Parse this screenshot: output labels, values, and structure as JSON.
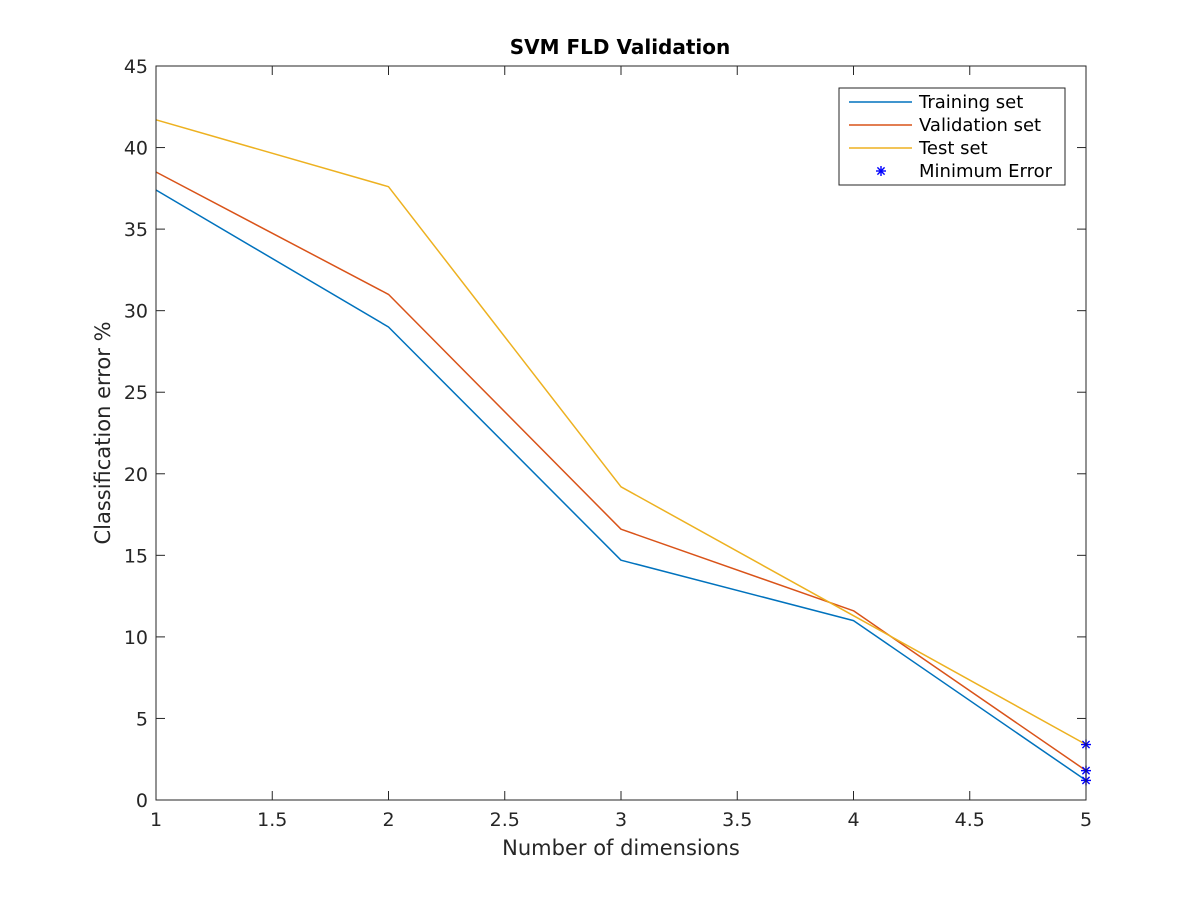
{
  "chart_data": {
    "type": "line",
    "title": "SVM FLD Validation",
    "xlabel": "Number of dimensions",
    "ylabel": "Classification error %",
    "xlim": [
      1,
      5
    ],
    "ylim": [
      0,
      45
    ],
    "xticks": [
      1,
      1.5,
      2,
      2.5,
      3,
      3.5,
      4,
      4.5,
      5
    ],
    "xtick_labels": [
      "1",
      "1.5",
      "2",
      "2.5",
      "3",
      "3.5",
      "4",
      "4.5",
      "5"
    ],
    "yticks": [
      0,
      5,
      10,
      15,
      20,
      25,
      30,
      35,
      40,
      45
    ],
    "ytick_labels": [
      "0",
      "5",
      "10",
      "15",
      "20",
      "25",
      "30",
      "35",
      "40",
      "45"
    ],
    "grid": false,
    "legend_position": "top-right",
    "x": [
      1,
      2,
      3,
      4,
      5
    ],
    "series": [
      {
        "name": "Training set",
        "color": "#0072bd",
        "values": [
          37.4,
          29.0,
          14.7,
          11.0,
          1.2
        ]
      },
      {
        "name": "Validation set",
        "color": "#d95319",
        "values": [
          38.5,
          31.0,
          16.6,
          11.6,
          1.8
        ]
      },
      {
        "name": "Test set",
        "color": "#edb120",
        "values": [
          41.7,
          37.6,
          19.2,
          11.3,
          3.4
        ]
      }
    ],
    "markers": {
      "name": "Minimum Error",
      "symbol": "*",
      "color": "#0000ff",
      "points": [
        {
          "x": 5,
          "y": 1.2
        },
        {
          "x": 5,
          "y": 1.8
        },
        {
          "x": 5,
          "y": 3.4
        }
      ]
    }
  }
}
